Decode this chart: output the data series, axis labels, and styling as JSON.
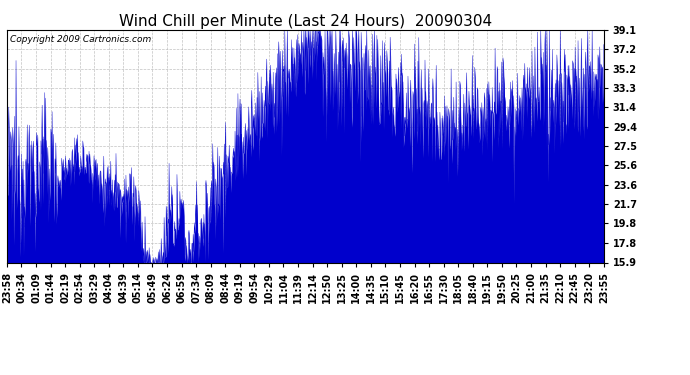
{
  "title": "Wind Chill per Minute (Last 24 Hours)  20090304",
  "copyright_text": "Copyright 2009 Cartronics.com",
  "yticks": [
    15.9,
    17.8,
    19.8,
    21.7,
    23.6,
    25.6,
    27.5,
    29.4,
    31.4,
    33.3,
    35.2,
    37.2,
    39.1
  ],
  "ymin": 15.9,
  "ymax": 39.1,
  "line_color": "#0000CC",
  "bg_color": "#ffffff",
  "plot_bg_color": "#ffffff",
  "grid_color": "#bbbbbb",
  "xtick_labels": [
    "23:58",
    "00:34",
    "01:09",
    "01:44",
    "02:19",
    "02:54",
    "03:29",
    "04:04",
    "04:39",
    "05:14",
    "05:49",
    "06:24",
    "06:59",
    "07:34",
    "08:09",
    "08:44",
    "09:19",
    "09:54",
    "10:29",
    "11:04",
    "11:39",
    "12:14",
    "12:50",
    "13:25",
    "14:00",
    "14:35",
    "15:10",
    "15:45",
    "16:20",
    "16:55",
    "17:30",
    "18:05",
    "18:40",
    "19:15",
    "19:50",
    "20:25",
    "21:00",
    "21:35",
    "22:10",
    "22:45",
    "23:20",
    "23:55"
  ],
  "title_fontsize": 11,
  "axis_fontsize": 7,
  "copyright_fontsize": 6.5
}
